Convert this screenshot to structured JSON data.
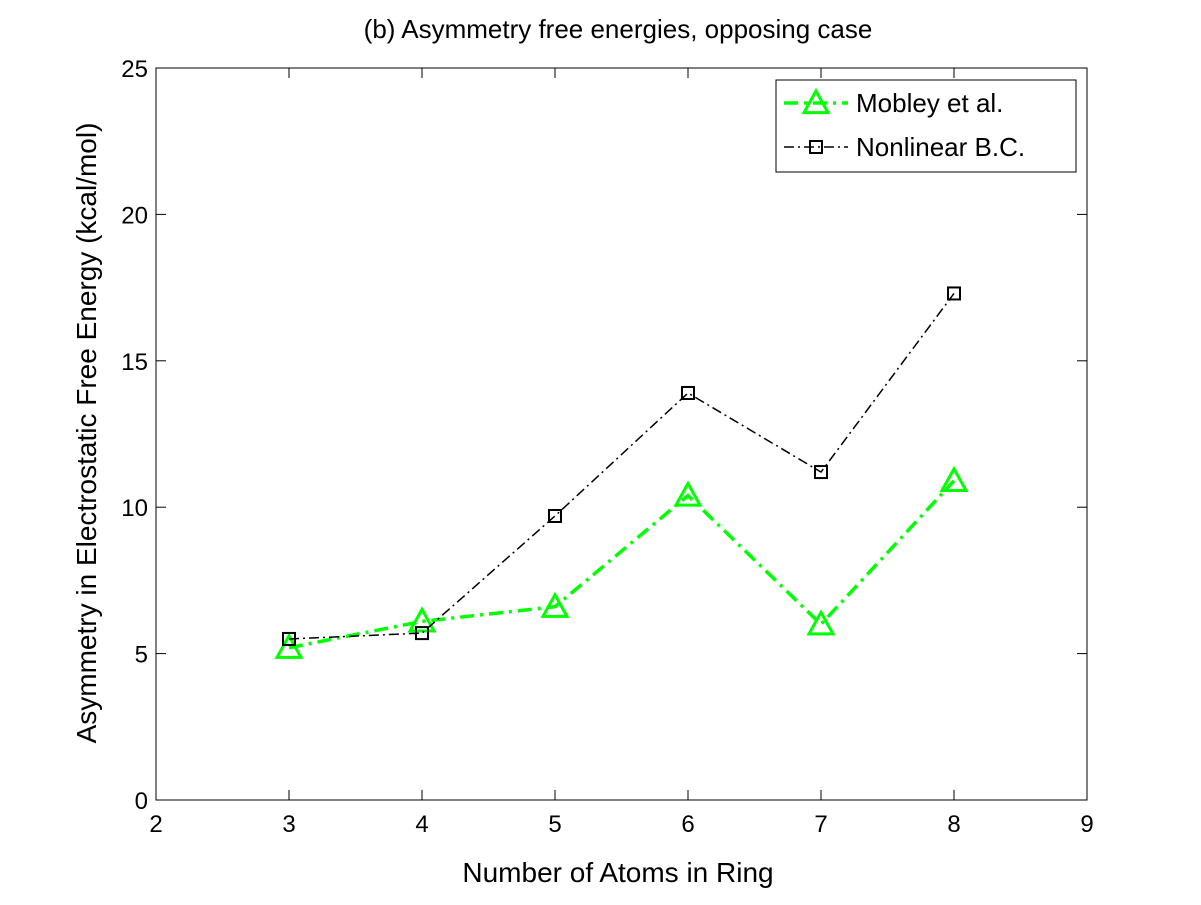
{
  "chart_data": {
    "type": "line",
    "title": "(b) Asymmetry free energies, opposing case",
    "xlabel": "Number of Atoms in Ring",
    "ylabel": "Asymmetry in Electrostatic Free Energy (kcal/mol)",
    "xlim": [
      2,
      9
    ],
    "ylim": [
      0,
      25
    ],
    "xticks": [
      2,
      3,
      4,
      5,
      6,
      7,
      8,
      9
    ],
    "yticks": [
      0,
      5,
      10,
      15,
      20,
      25
    ],
    "grid": false,
    "legend_position": "top-right",
    "series": [
      {
        "name": "Mobley et al.",
        "x": [
          3,
          4,
          5,
          6,
          7,
          8
        ],
        "y": [
          5.2,
          6.1,
          6.6,
          10.4,
          6.0,
          10.9
        ],
        "color": "#00ff00",
        "marker": "triangle",
        "linestyle": "dash-dot"
      },
      {
        "name": "Nonlinear B.C.",
        "x": [
          3,
          4,
          5,
          6,
          7,
          8
        ],
        "y": [
          5.5,
          5.7,
          9.7,
          13.9,
          11.2,
          17.3
        ],
        "color": "#000000",
        "marker": "square",
        "linestyle": "dash-dot"
      }
    ]
  }
}
